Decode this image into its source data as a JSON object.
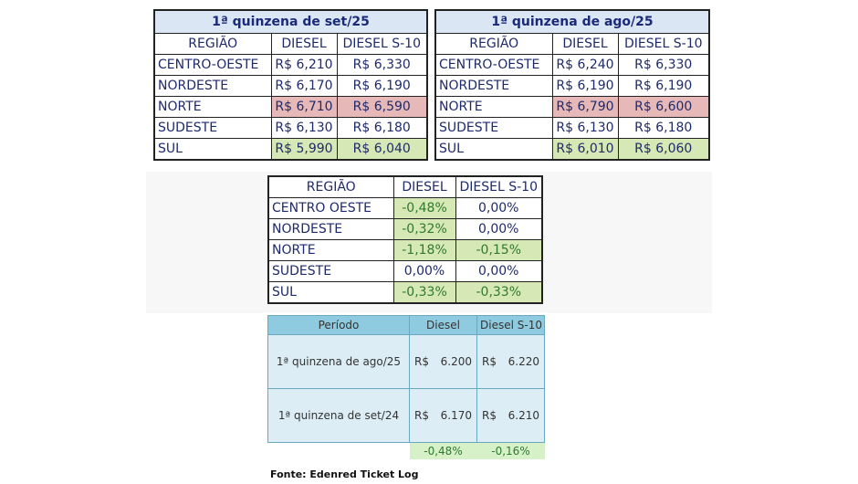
{
  "table_set": {
    "title": "1ª quinzena de set/25",
    "headers": [
      "REGIÃO",
      "DIESEL",
      "DIESEL S-10"
    ],
    "rows": [
      {
        "region": "CENTRO-OESTE",
        "diesel": "R$ 6,210",
        "s10": "R$ 6,330"
      },
      {
        "region": "NORDESTE",
        "diesel": "R$ 6,170",
        "s10": "R$ 6,190"
      },
      {
        "region": "NORTE",
        "diesel": "R$ 6,710",
        "s10": "R$ 6,590"
      },
      {
        "region": "SUDESTE",
        "diesel": "R$ 6,130",
        "s10": "R$ 6,180"
      },
      {
        "region": "SUL",
        "diesel": "R$ 5,990",
        "s10": "R$ 6,040"
      }
    ]
  },
  "table_ago": {
    "title": "1ª quinzena de ago/25",
    "headers": [
      "REGIÃO",
      "DIESEL",
      "DIESEL S-10"
    ],
    "rows": [
      {
        "region": "CENTRO-OESTE",
        "diesel": "R$ 6,240",
        "s10": "R$ 6,330"
      },
      {
        "region": "NORDESTE",
        "diesel": "R$ 6,190",
        "s10": "R$ 6,190"
      },
      {
        "region": "NORTE",
        "diesel": "R$ 6,790",
        "s10": "R$ 6,600"
      },
      {
        "region": "SUDESTE",
        "diesel": "R$ 6,130",
        "s10": "R$ 6,180"
      },
      {
        "region": "SUL",
        "diesel": "R$ 6,010",
        "s10": "R$ 6,060"
      }
    ]
  },
  "table_var": {
    "headers": [
      "REGIÃO",
      "DIESEL",
      "DIESEL S-10"
    ],
    "rows": [
      {
        "region": "CENTRO OESTE",
        "diesel": "-0,48%",
        "s10": "0,00%"
      },
      {
        "region": "NORDESTE",
        "diesel": "-0,32%",
        "s10": "0,00%"
      },
      {
        "region": "NORTE",
        "diesel": "-1,18%",
        "s10": "-0,15%"
      },
      {
        "region": "SUDESTE",
        "diesel": "0,00%",
        "s10": "0,00%"
      },
      {
        "region": "SUL",
        "diesel": "-0,33%",
        "s10": "-0,33%"
      }
    ]
  },
  "table_period": {
    "headers": [
      "Período",
      "Diesel",
      "Diesel S-10"
    ],
    "rows": [
      {
        "period": "1ª quinzena de ago/25",
        "cur1": "R$",
        "diesel": "6.200",
        "cur2": "R$",
        "s10": "6.220"
      },
      {
        "period": "1ª quinzena de set/24",
        "cur1": "R$",
        "diesel": "6.170",
        "cur2": "R$",
        "s10": "6.210"
      }
    ],
    "variation": {
      "diesel": "-0,48%",
      "s10": "-0,16%"
    }
  },
  "source": "Fonte: Edenred Ticket Log",
  "colors": {
    "red": "#e6b8b8",
    "green": "#d6e8b5",
    "header_blue": "#8fcbe0",
    "title_bg": "#dbe6f4"
  }
}
